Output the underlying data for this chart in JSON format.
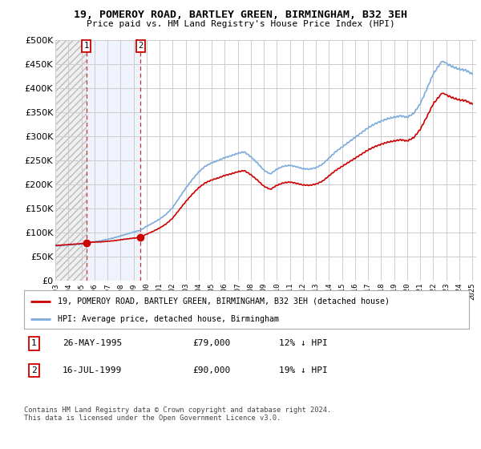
{
  "title": "19, POMEROY ROAD, BARTLEY GREEN, BIRMINGHAM, B32 3EH",
  "subtitle": "Price paid vs. HM Land Registry's House Price Index (HPI)",
  "legend_label_red": "19, POMEROY ROAD, BARTLEY GREEN, BIRMINGHAM, B32 3EH (detached house)",
  "legend_label_blue": "HPI: Average price, detached house, Birmingham",
  "transaction_1_date": "26-MAY-1995",
  "transaction_1_price": "£79,000",
  "transaction_1_note": "12% ↓ HPI",
  "transaction_1_year": 1995.38,
  "transaction_1_value": 79000,
  "transaction_2_date": "16-JUL-1999",
  "transaction_2_price": "£90,000",
  "transaction_2_note": "19% ↓ HPI",
  "transaction_2_year": 1999.54,
  "transaction_2_value": 90000,
  "footnote": "Contains HM Land Registry data © Crown copyright and database right 2024.\nThis data is licensed under the Open Government Licence v3.0.",
  "hpi_color": "#7aabdc",
  "price_color": "#cc0000",
  "background_color": "#ffffff",
  "grid_color": "#cccccc",
  "ylim": [
    0,
    500000
  ],
  "yticks": [
    0,
    50000,
    100000,
    150000,
    200000,
    250000,
    300000,
    350000,
    400000,
    450000,
    500000
  ],
  "xmin": 1993.0,
  "xmax": 2025.3,
  "xlabel_start_year": 1993,
  "xlabel_end_year": 2025
}
